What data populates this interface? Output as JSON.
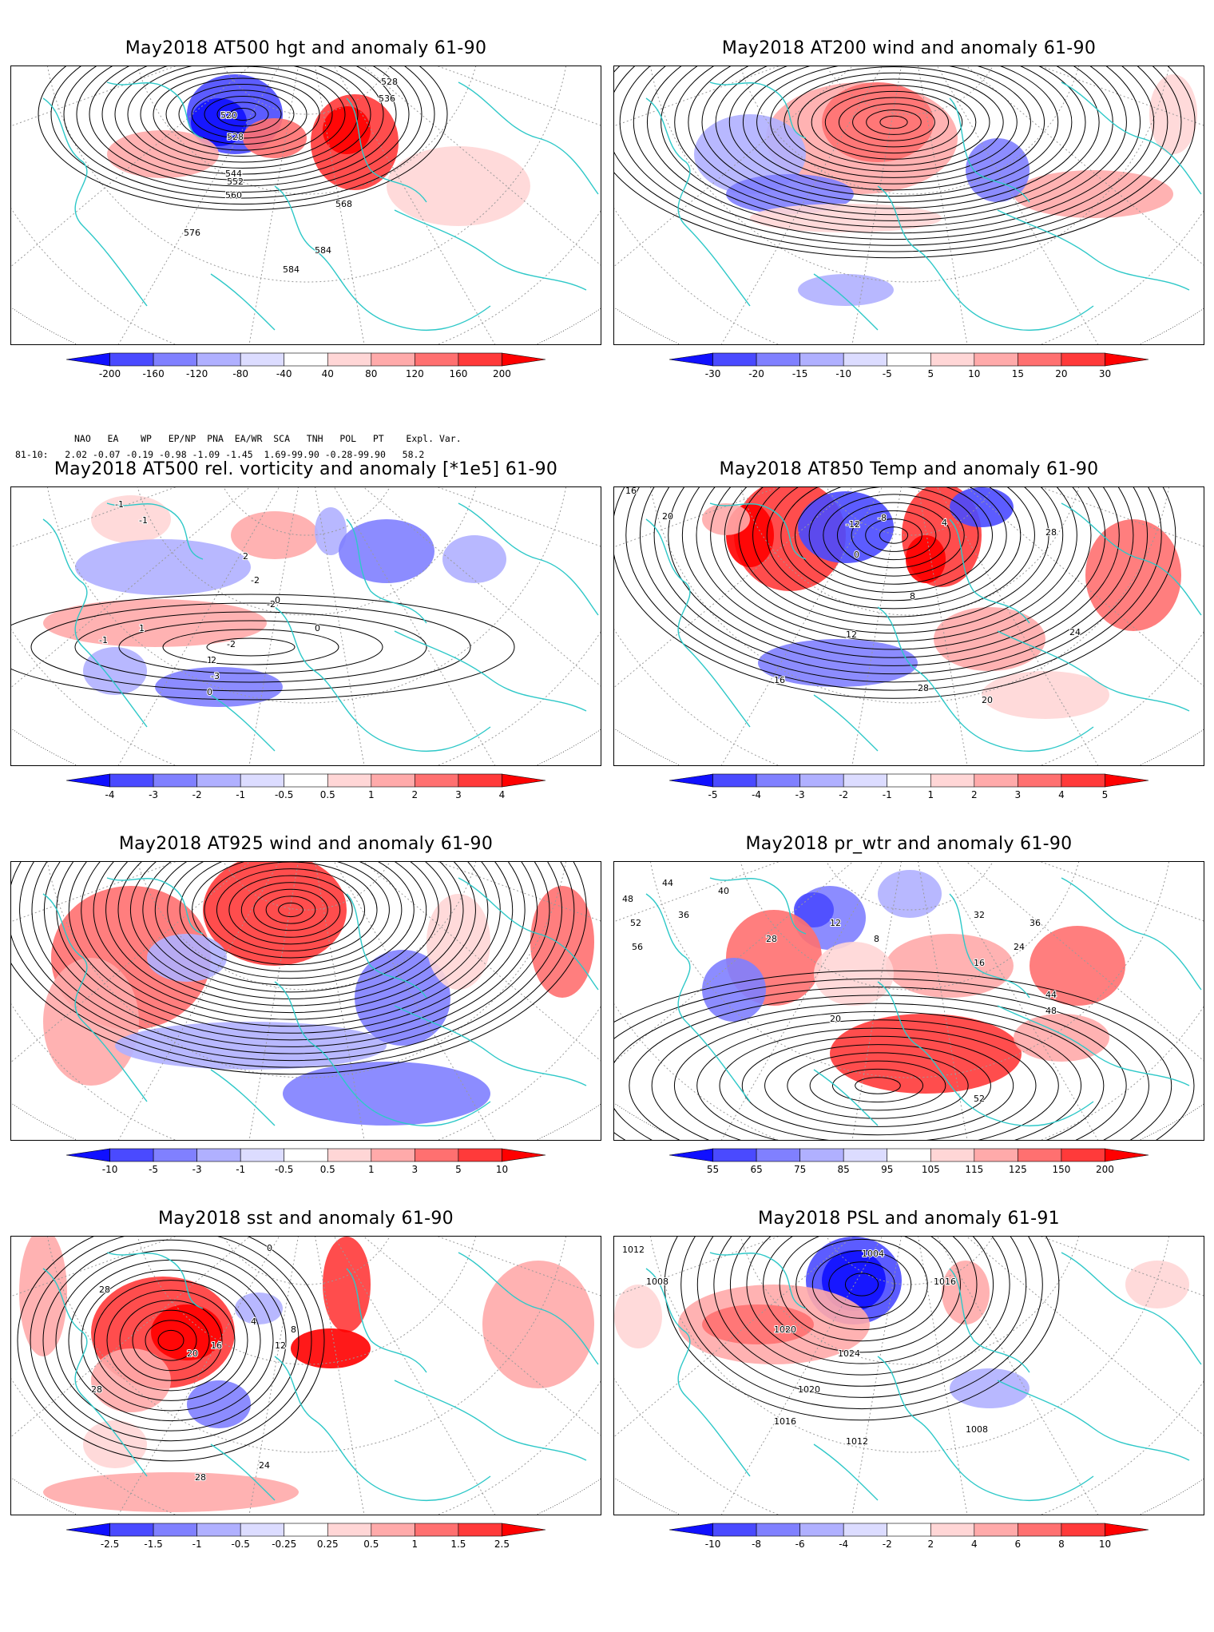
{
  "panels": [
    {
      "id": "p1",
      "title": "May2018 AT500 hgt and anomaly 61-90",
      "colorbar": {
        "labels": [
          "-200",
          "-160",
          "-120",
          "-80",
          "-40",
          "40",
          "80",
          "120",
          "160",
          "200"
        ]
      },
      "contour_labels": [
        "528",
        "536",
        "520",
        "528",
        "544",
        "552",
        "560",
        "568",
        "576",
        "584",
        "584"
      ]
    },
    {
      "id": "p2",
      "title": "May2018 AT200 wind and anomaly 61-90",
      "colorbar": {
        "labels": [
          "-30",
          "-20",
          "-15",
          "-10",
          "-5",
          "5",
          "10",
          "15",
          "20",
          "30"
        ]
      },
      "contour_labels": []
    },
    {
      "id": "p3",
      "title": "May2018 AT500 rel. vorticity and anomaly [*1e5] 61-90",
      "colorbar": {
        "labels": [
          "-4",
          "-3",
          "-2",
          "-1",
          "-0.5",
          "0.5",
          "1",
          "2",
          "3",
          "4"
        ]
      },
      "contour_labels": [
        "-1",
        "-1",
        "2",
        "-2",
        "0",
        "1",
        "-2",
        "-1",
        "0",
        "-3",
        "-2",
        "1",
        "2",
        "0"
      ]
    },
    {
      "id": "p4",
      "title": "May2018 AT850 Temp and anomaly 61-90",
      "colorbar": {
        "labels": [
          "-5",
          "-4",
          "-3",
          "-2",
          "-1",
          "1",
          "2",
          "3",
          "4",
          "5"
        ]
      },
      "contour_labels": [
        "16",
        "20",
        "-12",
        "-8",
        "0",
        "4",
        "8",
        "12",
        "16",
        "20",
        "24",
        "28",
        "28"
      ]
    },
    {
      "id": "p5",
      "title": "May2018 AT925 wind and anomaly 61-90",
      "colorbar": {
        "labels": [
          "-10",
          "-5",
          "-3",
          "-1",
          "-0.5",
          "0.5",
          "1",
          "3",
          "5",
          "10"
        ]
      },
      "contour_labels": []
    },
    {
      "id": "p6",
      "title": "May2018 pr_wtr and anomaly 61-90",
      "colorbar": {
        "labels": [
          "55",
          "65",
          "75",
          "85",
          "95",
          "105",
          "115",
          "125",
          "150",
          "200"
        ]
      },
      "contour_labels": [
        "48",
        "52",
        "56",
        "44",
        "36",
        "40",
        "28",
        "20",
        "12",
        "8",
        "16",
        "24",
        "32",
        "36",
        "44",
        "48",
        "52"
      ]
    },
    {
      "id": "p7",
      "title": "May2018 sst and anomaly 61-90",
      "colorbar": {
        "labels": [
          "-2.5",
          "-1.5",
          "-1",
          "-0.5",
          "-0.25",
          "0.25",
          "0.5",
          "1",
          "1.5",
          "2.5"
        ]
      },
      "contour_labels": [
        "0",
        "28",
        "28",
        "20",
        "16",
        "12",
        "8",
        "4",
        "24",
        "28"
      ]
    },
    {
      "id": "p8",
      "title": "May2018 PSL and anomaly 61-91",
      "colorbar": {
        "labels": [
          "-10",
          "-8",
          "-6",
          "-4",
          "-2",
          "2",
          "4",
          "6",
          "8",
          "10"
        ]
      },
      "contour_labels": [
        "1012",
        "1008",
        "1004",
        "1016",
        "1020",
        "1024",
        "1020",
        "1016",
        "1012",
        "1008"
      ]
    }
  ],
  "index_table": {
    "header": "NAO   EA    WP   EP/NP  PNA  EA/WR  SCA   TNH   POL   PT    Expl. Var.",
    "row": "81-10:   2.02 -0.07 -0.19 -0.98 -1.09 -1.45  1.69-99.90 -0.28-99.90   58.2"
  },
  "colors": {
    "coastline": "#2ec8c8",
    "contour": "#000000",
    "scale": [
      "#1010ff",
      "#4a4aff",
      "#8080ff",
      "#b0b0ff",
      "#dcdcff",
      "#ffffff",
      "#ffd6d6",
      "#ffaaaa",
      "#ff7070",
      "#ff3a3a",
      "#ff0000"
    ]
  }
}
